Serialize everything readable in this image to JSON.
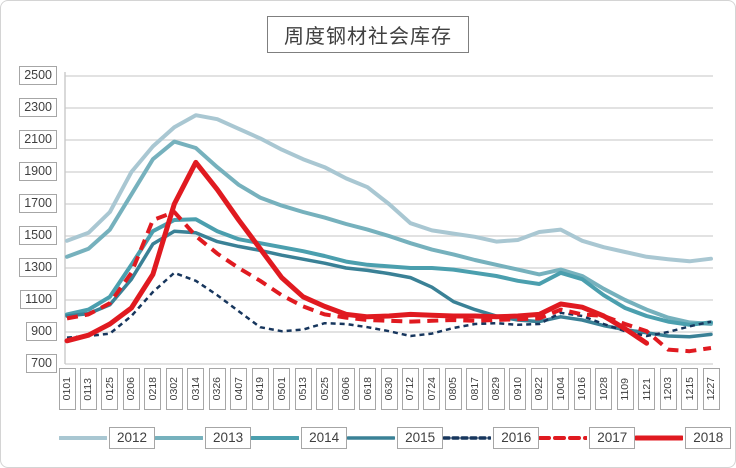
{
  "title": "周度钢材社会库存",
  "chart_data": {
    "type": "line",
    "title": "周度钢材社会库存",
    "grid": "horizontal",
    "legend_position": "bottom",
    "ylim": [
      700,
      2500
    ],
    "y_ticks": [
      700,
      900,
      1100,
      1300,
      1500,
      1700,
      1900,
      2100,
      2300,
      2500
    ],
    "categories": [
      "0101",
      "0113",
      "0125",
      "0206",
      "0218",
      "0302",
      "0314",
      "0326",
      "0407",
      "0419",
      "0501",
      "0513",
      "0525",
      "0606",
      "0618",
      "0630",
      "0712",
      "0724",
      "0805",
      "0817",
      "0829",
      "0910",
      "0922",
      "1004",
      "1016",
      "1028",
      "1109",
      "1121",
      "1203",
      "1215",
      "1227"
    ],
    "colors": {
      "grid": "#d9d9d9",
      "axis": "#c9c9c9",
      "tick_box_border": "#a6a6a6",
      "text": "#3f3f3f",
      "teal_2012": "#a9c7d2",
      "teal_2013": "#76b1bd",
      "teal_2014": "#4b9fae",
      "teal_2015": "#3a8196",
      "navy_2016": "#17365d",
      "red_2017": "#e01a20",
      "red_2018": "#e01a20"
    },
    "series": [
      {
        "name": "2012",
        "color": "#a9c7d2",
        "style": "solid",
        "width": 4,
        "values": [
          1470,
          1520,
          1650,
          1900,
          2060,
          2180,
          2255,
          2230,
          2170,
          2110,
          2040,
          1980,
          1930,
          1860,
          1805,
          1700,
          1580,
          1535,
          1515,
          1495,
          1465,
          1475,
          1525,
          1540,
          1470,
          1430,
          1400,
          1370,
          1355,
          1342,
          1358
        ]
      },
      {
        "name": "2013",
        "color": "#76b1bd",
        "style": "solid",
        "width": 4,
        "values": [
          1370,
          1420,
          1540,
          1760,
          1980,
          2090,
          2050,
          1930,
          1820,
          1740,
          1690,
          1650,
          1615,
          1575,
          1540,
          1500,
          1455,
          1415,
          1385,
          1350,
          1320,
          1290,
          1260,
          1290,
          1250,
          1170,
          1100,
          1040,
          990,
          960,
          950
        ]
      },
      {
        "name": "2014",
        "color": "#4b9fae",
        "style": "solid",
        "width": 4,
        "values": [
          1010,
          1040,
          1120,
          1320,
          1530,
          1600,
          1605,
          1530,
          1480,
          1455,
          1430,
          1405,
          1375,
          1340,
          1320,
          1310,
          1300,
          1300,
          1290,
          1270,
          1250,
          1220,
          1200,
          1270,
          1230,
          1130,
          1050,
          1000,
          965,
          945,
          960
        ]
      },
      {
        "name": "2015",
        "color": "#3a8196",
        "style": "solid",
        "width": 3.5,
        "values": [
          1000,
          1015,
          1070,
          1230,
          1450,
          1530,
          1520,
          1465,
          1435,
          1410,
          1380,
          1355,
          1330,
          1300,
          1285,
          1265,
          1240,
          1180,
          1090,
          1040,
          1000,
          975,
          965,
          995,
          975,
          940,
          915,
          895,
          875,
          870,
          885
        ]
      },
      {
        "name": "2016",
        "color": "#17365d",
        "style": "dashed-small",
        "width": 2.5,
        "values": [
          865,
          875,
          890,
          1000,
          1150,
          1270,
          1220,
          1130,
          1030,
          930,
          905,
          915,
          955,
          950,
          930,
          905,
          875,
          890,
          925,
          950,
          955,
          945,
          950,
          1020,
          1000,
          950,
          905,
          875,
          900,
          935,
          965
        ]
      },
      {
        "name": "2017",
        "color": "#e01a20",
        "style": "dashed",
        "width": 4,
        "values": [
          985,
          1010,
          1080,
          1270,
          1600,
          1650,
          1500,
          1390,
          1300,
          1220,
          1130,
          1060,
          1010,
          990,
          975,
          970,
          965,
          970,
          975,
          970,
          975,
          980,
          985,
          1040,
          1010,
          1000,
          950,
          905,
          790,
          780,
          800
        ]
      },
      {
        "name": "2018",
        "color": "#e01a20",
        "style": "solid",
        "width": 5,
        "values": [
          845,
          880,
          950,
          1050,
          1260,
          1700,
          1960,
          1790,
          1600,
          1420,
          1240,
          1120,
          1060,
          1010,
          995,
          1000,
          1010,
          1005,
          1000,
          1000,
          995,
          1000,
          1010,
          1075,
          1055,
          1000,
          920,
          830,
          null,
          null,
          null
        ]
      }
    ]
  }
}
